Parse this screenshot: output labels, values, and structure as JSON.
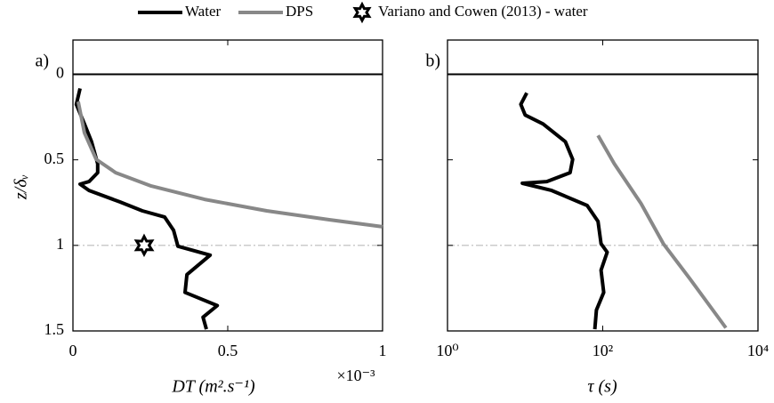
{
  "legend": "top",
  "chart_data": [
    {
      "type": "line",
      "panel_label": "a)",
      "xlabel": "DT (m².s⁻¹)",
      "ylabel": "z/δᵥ",
      "x_multiplier": "×10⁻³",
      "xlim": [
        0,
        1
      ],
      "xticks": [
        0,
        0.5,
        1
      ],
      "ylim": [
        -0.2,
        1.5
      ],
      "yticks": [
        0,
        0.5,
        1,
        1.5
      ],
      "y_reversed": true,
      "xlog": false,
      "show_ytick_labels": true,
      "hlines": [
        {
          "y": 0,
          "style": "solid",
          "color": "#000000"
        },
        {
          "y": 1,
          "style": "dashdot",
          "color": "#bbbbbb"
        }
      ],
      "series": [
        {
          "name": "Water",
          "type": "line",
          "color": "#000000",
          "x": [
            0.023,
            0.011,
            0.037,
            0.06,
            0.08,
            0.08,
            0.052,
            0.023,
            0.052,
            0.152,
            0.224,
            0.296,
            0.325,
            0.339,
            0.443,
            0.368,
            0.362,
            0.466,
            0.42,
            0.431
          ],
          "values": [
            0.083,
            0.176,
            0.29,
            0.394,
            0.523,
            0.575,
            0.627,
            0.642,
            0.679,
            0.746,
            0.798,
            0.834,
            0.912,
            1.005,
            1.057,
            1.171,
            1.275,
            1.352,
            1.42,
            1.49
          ]
        },
        {
          "name": "DPS",
          "type": "line",
          "color": "#888888",
          "x": [
            0.017,
            0.037,
            0.075,
            0.138,
            0.253,
            0.425,
            0.626,
            0.828,
            1.0
          ],
          "values": [
            0.16,
            0.342,
            0.497,
            0.575,
            0.653,
            0.731,
            0.798,
            0.85,
            0.891
          ]
        },
        {
          "name": "Variano and Cowen (2013) - water",
          "type": "scatter",
          "color": "#000000",
          "x": [
            0.23
          ],
          "values": [
            1.0
          ]
        }
      ]
    },
    {
      "type": "line",
      "panel_label": "b)",
      "xlabel": "τ (s)",
      "xlim": [
        1,
        10000
      ],
      "xticks": [
        {
          "value": 1,
          "label": "10⁰"
        },
        {
          "value": 100,
          "label": "10²"
        },
        {
          "value": 10000,
          "label": "10⁴"
        }
      ],
      "ylim": [
        -0.2,
        1.5
      ],
      "yticks": [
        0,
        0.5,
        1,
        1.5
      ],
      "y_reversed": true,
      "xlog": true,
      "show_ytick_labels": false,
      "hlines": [
        {
          "y": 0,
          "style": "solid",
          "color": "#000000"
        },
        {
          "y": 1,
          "style": "dashdot",
          "color": "#bbbbbb"
        }
      ],
      "series": [
        {
          "name": "Water",
          "type": "line",
          "color": "#000000",
          "x": [
            10.5,
            8.8,
            10,
            17,
            33,
            41,
            38,
            19,
            9.2,
            22,
            63,
            87,
            95,
            114,
            95,
            103,
            83,
            79
          ],
          "values": [
            0.109,
            0.176,
            0.238,
            0.29,
            0.394,
            0.497,
            0.575,
            0.627,
            0.637,
            0.679,
            0.767,
            0.86,
            0.99,
            1.04,
            1.145,
            1.275,
            1.378,
            1.49
          ]
        },
        {
          "name": "DPS",
          "type": "line",
          "color": "#888888",
          "x": [
            87,
            141,
            312,
            603,
            1336,
            3855
          ],
          "values": [
            0.358,
            0.523,
            0.756,
            0.99,
            1.197,
            1.482
          ]
        }
      ]
    }
  ]
}
